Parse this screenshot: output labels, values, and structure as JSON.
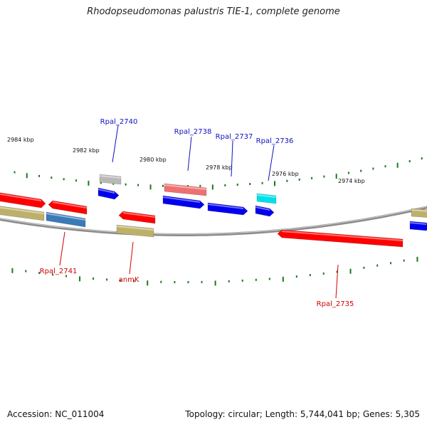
{
  "title": "Rhodopseudomonas palustris TIE-1, complete genome",
  "footer": {
    "accession": "Accession: NC_011004",
    "summary": "Topology: circular; Length: 5,744,041 bp; Genes: 5,305"
  },
  "colors": {
    "backbone": "#8c8c8c",
    "tick": "#1a7a1a",
    "label_forward": "#1010c0",
    "label_reverse": "#d00000",
    "red": "#ff0000",
    "blue": "#0000ee",
    "khaki": "#bdb06a",
    "steelblue": "#3a7ab8",
    "gray": "#b8b8b8",
    "pink": "#ee7070",
    "cyan": "#00e0e8"
  },
  "scale_labels": [
    "2984 kbp",
    "2982 kbp",
    "2980 kbp",
    "2978 kbp",
    "2976 kbp",
    "2974 kbp"
  ],
  "gene_labels": {
    "forward": [
      "Rpal_2740",
      "Rpal_2738",
      "Rpal_2737",
      "Rpal_2736"
    ],
    "reverse": [
      "Rpal_2741",
      "anmK",
      "Rpal_2735"
    ]
  }
}
